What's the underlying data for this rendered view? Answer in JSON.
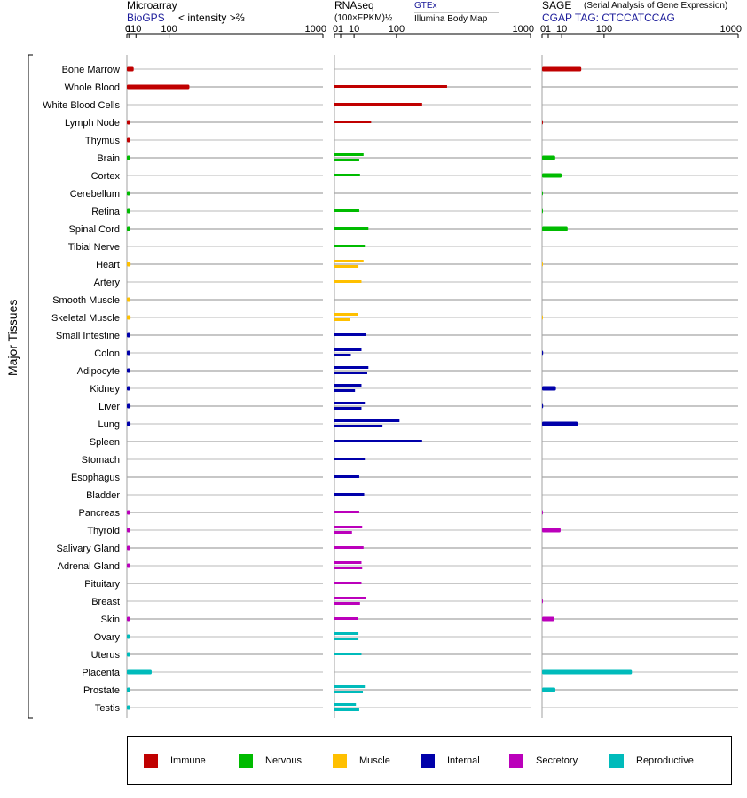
{
  "panels": {
    "microarray": {
      "title": "Microarray",
      "subtitle": "BioGPS",
      "axis_note": "< intensity >⅔"
    },
    "rnaseq": {
      "title": "RNAseq",
      "subtitle": "(100×FPKM)½",
      "source_top": "GTEx",
      "source_bottom": "Illumina Body Map"
    },
    "sage": {
      "title": "SAGE",
      "title_note": "(Serial Analysis of Gene Expression)",
      "subtitle": "CGAP TAG: CTCCATCCAG"
    }
  },
  "y_axis_label": "Major Tissues",
  "legend": [
    {
      "label": "Immune",
      "color": "#c00000"
    },
    {
      "label": "Nervous",
      "color": "#00bb00"
    },
    {
      "label": "Muscle",
      "color": "#ffc000"
    },
    {
      "label": "Internal",
      "color": "#0000aa"
    },
    {
      "label": "Secretory",
      "color": "#bb00bb"
    },
    {
      "label": "Reproductive",
      "color": "#00bbbb"
    }
  ],
  "chart_data": [
    {
      "type": "bar",
      "panel": "Microarray (BioGPS)",
      "scale": "power 2/3",
      "xlim": [
        0,
        1000
      ],
      "ticks": [
        0,
        1,
        10,
        100,
        1000
      ],
      "categories": [
        "Bone Marrow",
        "Whole Blood",
        "White Blood Cells",
        "Lymph Node",
        "Thymus",
        "Brain",
        "Cortex",
        "Cerebellum",
        "Retina",
        "Spinal Cord",
        "Tibial Nerve",
        "Heart",
        "Artery",
        "Smooth Muscle",
        "Skeletal Muscle",
        "Small Intestine",
        "Colon",
        "Adipocyte",
        "Kidney",
        "Liver",
        "Lung",
        "Spleen",
        "Stomach",
        "Esophagus",
        "Bladder",
        "Pancreas",
        "Thyroid",
        "Salivary Gland",
        "Adrenal Gland",
        "Pituitary",
        "Breast",
        "Skin",
        "Ovary",
        "Uterus",
        "Placenta",
        "Prostate",
        "Testis"
      ],
      "groups": [
        "Immune",
        "Immune",
        "Immune",
        "Immune",
        "Immune",
        "Nervous",
        "Nervous",
        "Nervous",
        "Nervous",
        "Nervous",
        "Nervous",
        "Muscle",
        "Muscle",
        "Muscle",
        "Muscle",
        "Internal",
        "Internal",
        "Internal",
        "Internal",
        "Internal",
        "Internal",
        "Internal",
        "Internal",
        "Internal",
        "Internal",
        "Secretory",
        "Secretory",
        "Secretory",
        "Secretory",
        "Secretory",
        "Secretory",
        "Secretory",
        "Reproductive",
        "Reproductive",
        "Reproductive",
        "Reproductive",
        "Reproductive"
      ],
      "values": [
        6.5,
        180,
        null,
        2.2,
        2.1,
        2.2,
        null,
        2.1,
        2.4,
        2.4,
        null,
        2.6,
        null,
        2.4,
        2.6,
        2.3,
        2.3,
        2.3,
        2.1,
        2.5,
        2.5,
        null,
        null,
        null,
        null,
        2.1,
        2.4,
        2.1,
        2.1,
        null,
        null,
        2.0,
        1.9,
        2.1,
        45,
        2.4,
        2.2
      ]
    },
    {
      "type": "bar",
      "panel": "RNAseq (GTEx / Illumina Body Map)",
      "scale": "power 1/2",
      "xlim": [
        0,
        1000
      ],
      "ticks": [
        0,
        1,
        10,
        100,
        1000
      ],
      "categories": [
        "Bone Marrow",
        "Whole Blood",
        "White Blood Cells",
        "Lymph Node",
        "Thymus",
        "Brain",
        "Cortex",
        "Cerebellum",
        "Retina",
        "Spinal Cord",
        "Tibial Nerve",
        "Heart",
        "Artery",
        "Smooth Muscle",
        "Skeletal Muscle",
        "Small Intestine",
        "Colon",
        "Adipocyte",
        "Kidney",
        "Liver",
        "Lung",
        "Spleen",
        "Stomach",
        "Esophagus",
        "Bladder",
        "Pancreas",
        "Thyroid",
        "Salivary Gland",
        "Adrenal Gland",
        "Pituitary",
        "Breast",
        "Skin",
        "Ovary",
        "Uterus",
        "Placenta",
        "Prostate",
        "Testis"
      ],
      "series": [
        {
          "values": [
            null,
            330,
            200,
            35,
            null,
            22,
            17,
            null,
            16,
            30,
            24,
            22,
            19,
            null,
            14,
            26,
            19,
            30,
            19,
            24,
            110,
            200,
            24,
            16,
            23,
            16,
            20,
            22,
            19,
            19,
            26,
            14,
            15,
            19,
            null,
            24,
            12
          ]
        },
        {
          "values": [
            null,
            null,
            null,
            null,
            null,
            16,
            null,
            null,
            null,
            null,
            null,
            15,
            null,
            null,
            6,
            null,
            7,
            28,
            11,
            19,
            60,
            null,
            null,
            null,
            null,
            null,
            8,
            null,
            20,
            null,
            17,
            null,
            15,
            null,
            null,
            21,
            16
          ]
        }
      ]
    },
    {
      "type": "bar",
      "panel": "SAGE (CGAP TAG: CTCCATCCAG)",
      "scale": "power 1/2",
      "xlim": [
        0,
        1000
      ],
      "ticks": [
        0,
        1,
        10,
        100,
        1000
      ],
      "categories": [
        "Bone Marrow",
        "Whole Blood",
        "White Blood Cells",
        "Lymph Node",
        "Thymus",
        "Brain",
        "Cortex",
        "Cerebellum",
        "Retina",
        "Spinal Cord",
        "Tibial Nerve",
        "Heart",
        "Artery",
        "Smooth Muscle",
        "Skeletal Muscle",
        "Small Intestine",
        "Colon",
        "Adipocyte",
        "Kidney",
        "Liver",
        "Lung",
        "Spleen",
        "Stomach",
        "Esophagus",
        "Bladder",
        "Pancreas",
        "Thyroid",
        "Salivary Gland",
        "Adrenal Gland",
        "Pituitary",
        "Breast",
        "Skin",
        "Ovary",
        "Uterus",
        "Placenta",
        "Prostate",
        "Testis"
      ],
      "values": [
        40,
        null,
        null,
        0.02,
        null,
        4.5,
        10,
        0.01,
        0.01,
        17,
        null,
        0.01,
        null,
        null,
        0.01,
        null,
        0.03,
        null,
        5,
        0.03,
        33,
        null,
        null,
        null,
        null,
        0.02,
        9,
        null,
        null,
        null,
        0.02,
        3.8,
        null,
        null,
        210,
        4.6,
        null
      ]
    }
  ]
}
